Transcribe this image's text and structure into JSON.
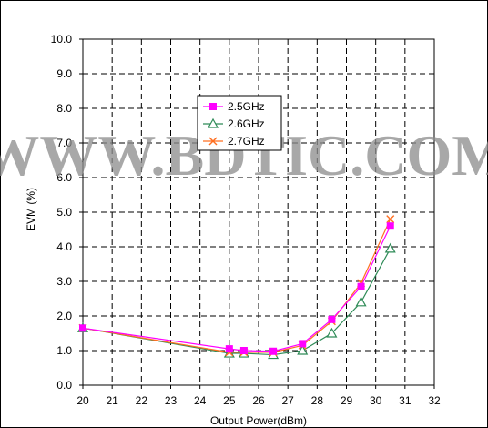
{
  "watermark": "WWW.BDTIC.COM",
  "chart_data": {
    "type": "line",
    "xlabel": "Output Power(dBm)",
    "ylabel": "EVM (%)",
    "xlim": [
      20,
      32
    ],
    "ylim": [
      0,
      10
    ],
    "x_ticks": [
      "20",
      "21",
      "22",
      "23",
      "24",
      "25",
      "26",
      "27",
      "28",
      "29",
      "30",
      "31",
      "32"
    ],
    "y_ticks": [
      "0.0",
      "1.0",
      "2.0",
      "3.0",
      "4.0",
      "5.0",
      "6.0",
      "7.0",
      "8.0",
      "9.0",
      "10.0"
    ],
    "grid": true,
    "legend_position": "top-center",
    "series": [
      {
        "name": "2.5GHz",
        "color": "#ff00ff",
        "marker": "square",
        "x": [
          20,
          25,
          25.5,
          26.5,
          27.5,
          28.5,
          29.5,
          30.5
        ],
        "y": [
          1.65,
          1.05,
          1.0,
          0.98,
          1.2,
          1.9,
          2.85,
          4.6
        ]
      },
      {
        "name": "2.6GHz",
        "color": "#2e8b57",
        "marker": "triangle",
        "x": [
          20,
          25,
          25.5,
          26.5,
          27.5,
          28.5,
          29.5,
          30.5
        ],
        "y": [
          1.65,
          0.92,
          0.92,
          0.88,
          1.0,
          1.5,
          2.4,
          3.95
        ]
      },
      {
        "name": "2.7GHz",
        "color": "#ff6f20",
        "marker": "x",
        "x": [
          20,
          25,
          25.5,
          26.5,
          27.5,
          28.5,
          29.5,
          30.5
        ],
        "y": [
          1.65,
          0.95,
          0.95,
          0.95,
          1.15,
          1.85,
          2.95,
          4.8
        ]
      }
    ]
  }
}
